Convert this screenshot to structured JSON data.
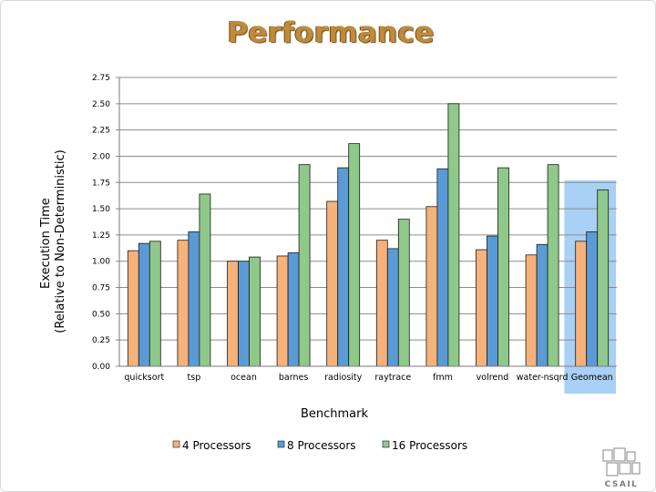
{
  "slide": {
    "title": "Performance"
  },
  "chart_data": {
    "type": "bar",
    "xlabel": "Benchmark",
    "ylabel": [
      "Execution Time",
      "(Relative to Non-Deterministic)"
    ],
    "ylim": [
      0,
      2.75
    ],
    "yticks": [
      "0.00",
      "0.25",
      "0.50",
      "0.75",
      "1.00",
      "1.25",
      "1.50",
      "1.75",
      "2.00",
      "2.25",
      "2.50",
      "2.75"
    ],
    "grid": true,
    "legend_position": "bottom",
    "categories": [
      "quicksort",
      "tsp",
      "ocean",
      "barnes",
      "radiosity",
      "raytrace",
      "fmm",
      "volrend",
      "water-nsqrd",
      "Geomean"
    ],
    "highlighted_category": "Geomean",
    "highlight_color": "#a9d0f5",
    "series": [
      {
        "name": "4 Processors",
        "color": "#f6b27a",
        "values": [
          1.1,
          1.2,
          1.0,
          1.05,
          1.57,
          1.2,
          1.52,
          1.11,
          1.06,
          1.19
        ]
      },
      {
        "name": "8 Processors",
        "color": "#5b9bd5",
        "values": [
          1.17,
          1.28,
          1.0,
          1.08,
          1.89,
          1.12,
          1.88,
          1.24,
          1.16,
          1.28
        ]
      },
      {
        "name": "16 Processors",
        "color": "#8fc98a",
        "values": [
          1.19,
          1.64,
          1.04,
          1.92,
          2.12,
          1.4,
          2.5,
          1.89,
          1.92,
          1.68
        ]
      }
    ]
  },
  "logo": {
    "label": "CSAIL"
  }
}
